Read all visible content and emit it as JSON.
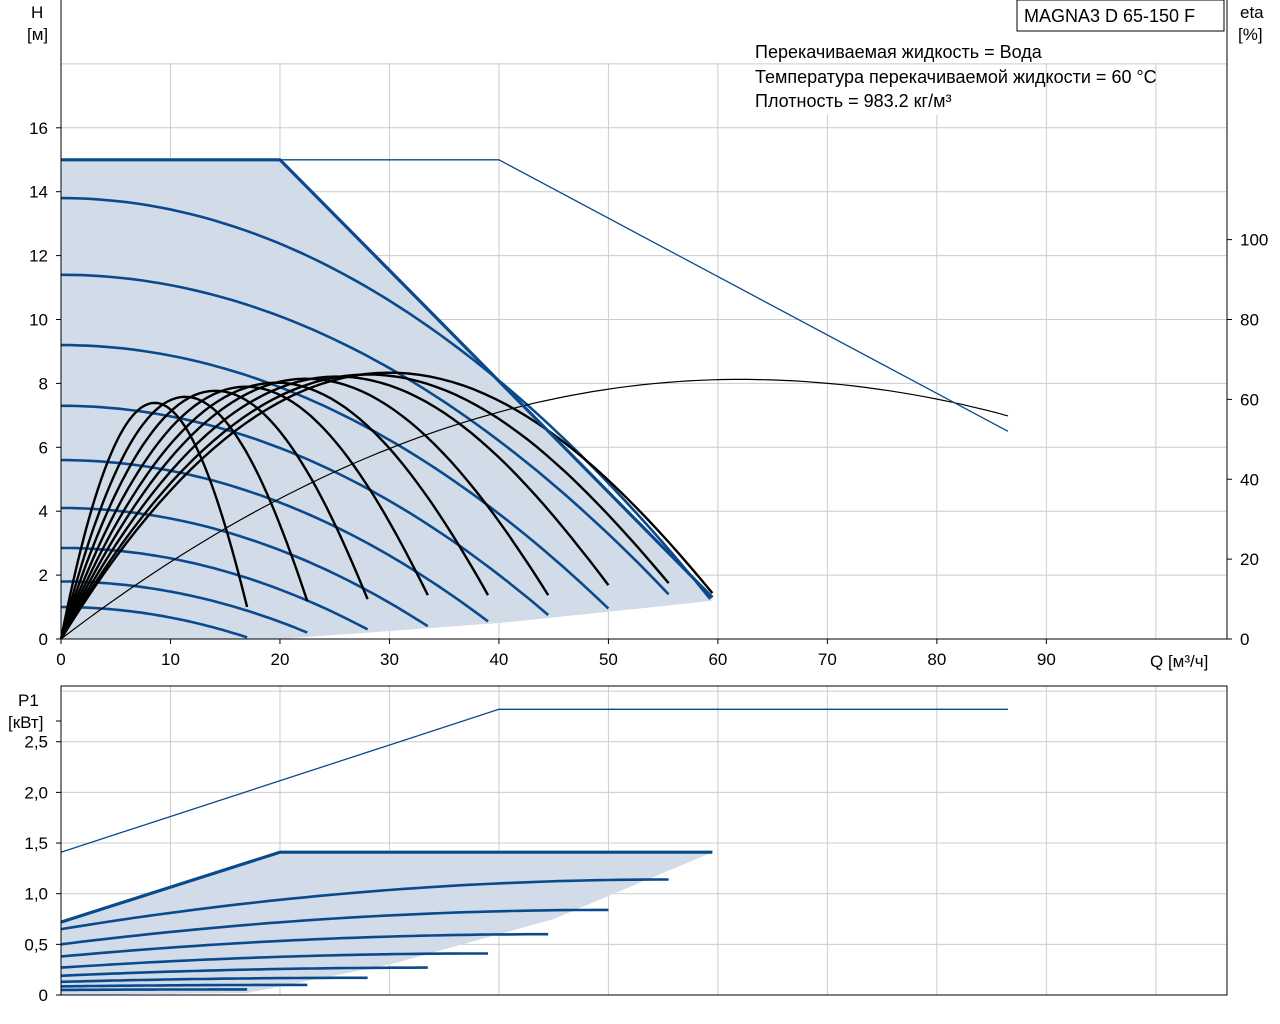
{
  "product_title": "MAGNA3 D 65-150 F",
  "info_lines": [
    "Перекачиваемая жидкость = Вода",
    "Температура перекачиваемой жидкости = 60 °C",
    "Плотность = 983.2 кг/м³"
  ],
  "colors": {
    "curve": "#0a4a8c",
    "eta": "#000000",
    "fill": "#d1dce8",
    "grid": "#cccccc"
  },
  "chart_data": [
    {
      "type": "line",
      "title": "",
      "ylabel_lines": [
        "H",
        "[м]"
      ],
      "y2label_lines": [
        "eta",
        "[%]"
      ],
      "xlabel": "Q [м³/ч]",
      "xlim": [
        0,
        106.5
      ],
      "ylim": [
        0,
        20
      ],
      "y2lim": [
        0,
        160
      ],
      "x_ticks": [
        0,
        10,
        20,
        30,
        40,
        50,
        60,
        70,
        80,
        90
      ],
      "y_ticks": [
        0,
        2,
        4,
        6,
        8,
        10,
        12,
        14,
        16
      ],
      "y2_ticks": [
        0,
        20,
        40,
        60,
        80,
        100
      ],
      "y2_tick_labels": [
        "0",
        "20",
        "40",
        "60",
        "80",
        "100"
      ],
      "grid": true,
      "operating_area": {
        "top": [
          [
            0,
            15
          ],
          [
            20,
            15
          ],
          [
            33,
            10.5
          ],
          [
            59.5,
            1.2
          ]
        ],
        "bottom": [
          [
            59.5,
            1.2
          ],
          [
            50,
            0.85
          ],
          [
            40,
            0.5
          ],
          [
            28,
            0.2
          ],
          [
            20,
            0
          ]
        ]
      },
      "max_curve": {
        "name": "max",
        "points": [
          [
            0,
            15
          ],
          [
            20,
            15
          ],
          [
            33,
            10.5
          ],
          [
            59.5,
            1.3
          ]
        ]
      },
      "single_pump_max": {
        "name": "2 pumps",
        "points": [
          [
            0,
            15
          ],
          [
            40,
            15
          ],
          [
            86.5,
            6.5
          ]
        ]
      },
      "hq_curves": [
        {
          "shutoff": 13.8,
          "qmax": 59.3,
          "hend": 1.25
        },
        {
          "shutoff": 11.4,
          "qmax": 55.5,
          "hend": 1.4
        },
        {
          "shutoff": 9.2,
          "qmax": 50.0,
          "hend": 0.95
        },
        {
          "shutoff": 7.3,
          "qmax": 44.5,
          "hend": 0.75
        },
        {
          "shutoff": 5.6,
          "qmax": 39.0,
          "hend": 0.55
        },
        {
          "shutoff": 4.1,
          "qmax": 33.5,
          "hend": 0.4
        },
        {
          "shutoff": 2.85,
          "qmax": 28.0,
          "hend": 0.3
        },
        {
          "shutoff": 1.8,
          "qmax": 22.5,
          "hend": 0.2
        },
        {
          "shutoff": 1.0,
          "qmax": 17.0,
          "hend": 0.05
        }
      ],
      "eta_curves": [
        {
          "qmax": 59.5,
          "peak": 66.5,
          "end": 11.5
        },
        {
          "qmax": 55.5,
          "peak": 66,
          "end": 14
        },
        {
          "qmax": 50.0,
          "peak": 65.5,
          "end": 13.5
        },
        {
          "qmax": 44.5,
          "peak": 65,
          "end": 11
        },
        {
          "qmax": 39.0,
          "peak": 64,
          "end": 11
        },
        {
          "qmax": 33.5,
          "peak": 63,
          "end": 11
        },
        {
          "qmax": 28.0,
          "peak": 62,
          "end": 10
        },
        {
          "qmax": 22.5,
          "peak": 60.5,
          "end": 9.5
        },
        {
          "qmax": 17.0,
          "peak": 59,
          "end": 8
        }
      ],
      "eta_two_pumps": {
        "q_peak": 62,
        "peak": 65,
        "qmax": 86.5,
        "end": 53
      }
    },
    {
      "type": "line",
      "title": "",
      "ylabel_lines": [
        "P1",
        "[кВт]"
      ],
      "xlim": [
        0,
        106.5
      ],
      "ylim": [
        0,
        3.05
      ],
      "y_ticks": [
        0,
        0.5,
        1.0,
        1.5,
        2.0,
        2.5
      ],
      "y_tick_labels": [
        "0",
        "0,5",
        "1,0",
        "1,5",
        "2,0",
        "2,5"
      ],
      "grid": true,
      "operating_area": {
        "top": [
          [
            0,
            0.72
          ],
          [
            20,
            1.41
          ],
          [
            59.5,
            1.41
          ]
        ],
        "bottom": [
          [
            59.5,
            1.41
          ],
          [
            45,
            0.75
          ],
          [
            30,
            0.3
          ],
          [
            17,
            0.02
          ],
          [
            0,
            0
          ]
        ]
      },
      "max_curve": {
        "name": "max",
        "points": [
          [
            0,
            0.72
          ],
          [
            20,
            1.41
          ],
          [
            59.5,
            1.41
          ]
        ]
      },
      "two_pumps_max": {
        "name": "2 pumps",
        "points": [
          [
            0,
            1.41
          ],
          [
            40,
            2.82
          ],
          [
            86.5,
            2.82
          ]
        ]
      },
      "p_curves": [
        {
          "p0": 0.65,
          "qmax": 55.5,
          "pend": 1.14,
          "qleft": 32
        },
        {
          "p0": 0.5,
          "qmax": 50.0,
          "pend": 0.84
        },
        {
          "p0": 0.38,
          "qmax": 44.5,
          "pend": 0.6
        },
        {
          "p0": 0.27,
          "qmax": 39.0,
          "pend": 0.41
        },
        {
          "p0": 0.19,
          "qmax": 33.5,
          "pend": 0.27
        },
        {
          "p0": 0.13,
          "qmax": 28.0,
          "pend": 0.17
        },
        {
          "p0": 0.085,
          "qmax": 22.5,
          "pend": 0.1
        },
        {
          "p0": 0.05,
          "qmax": 17.0,
          "pend": 0.055
        }
      ]
    }
  ]
}
